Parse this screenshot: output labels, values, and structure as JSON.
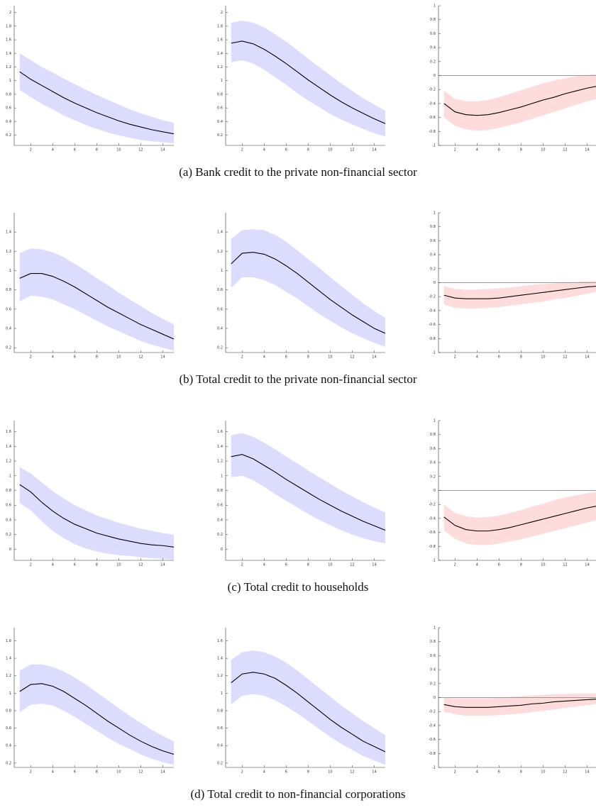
{
  "chart_data": [
    {
      "type": "line",
      "x": [
        1,
        2,
        3,
        4,
        5,
        6,
        7,
        8,
        9,
        10,
        11,
        12,
        13,
        14,
        15
      ],
      "values": [
        1.13,
        1.02,
        0.93,
        0.84,
        0.75,
        0.67,
        0.6,
        0.53,
        0.47,
        0.41,
        0.36,
        0.32,
        0.28,
        0.25,
        0.22
      ],
      "upper": [
        1.4,
        1.3,
        1.2,
        1.12,
        1.03,
        0.95,
        0.87,
        0.79,
        0.72,
        0.65,
        0.58,
        0.52,
        0.47,
        0.42,
        0.38
      ],
      "lower": [
        0.86,
        0.76,
        0.66,
        0.58,
        0.49,
        0.42,
        0.35,
        0.29,
        0.24,
        0.2,
        0.16,
        0.13,
        0.11,
        0.1,
        0.08
      ],
      "color": "#000000",
      "band_color": "#dcdcff",
      "xlim": [
        0.5,
        15
      ],
      "ylim": [
        0.05,
        2.1
      ],
      "xticks": [
        2,
        4,
        6,
        8,
        10,
        12,
        14
      ],
      "yticks": [
        0.2,
        0.4,
        0.6,
        0.8,
        1,
        1.2,
        1.4,
        1.6,
        1.8,
        2
      ],
      "zero_line": false
    },
    {
      "type": "line",
      "x": [
        1,
        2,
        3,
        4,
        5,
        6,
        7,
        8,
        9,
        10,
        11,
        12,
        13,
        14,
        15
      ],
      "values": [
        1.55,
        1.58,
        1.54,
        1.46,
        1.36,
        1.25,
        1.13,
        1.01,
        0.9,
        0.79,
        0.69,
        0.6,
        0.52,
        0.44,
        0.37
      ],
      "upper": [
        1.85,
        1.88,
        1.85,
        1.78,
        1.68,
        1.57,
        1.45,
        1.32,
        1.2,
        1.08,
        0.96,
        0.85,
        0.74,
        0.65,
        0.56
      ],
      "lower": [
        1.27,
        1.3,
        1.25,
        1.16,
        1.05,
        0.94,
        0.82,
        0.71,
        0.61,
        0.51,
        0.43,
        0.36,
        0.29,
        0.23,
        0.18
      ],
      "color": "#000000",
      "band_color": "#dcdcff",
      "xlim": [
        0.5,
        15
      ],
      "ylim": [
        0.05,
        2.1
      ],
      "xticks": [
        2,
        4,
        6,
        8,
        10,
        12,
        14
      ],
      "yticks": [
        0.2,
        0.4,
        0.6,
        0.8,
        1,
        1.2,
        1.4,
        1.6,
        1.8,
        2
      ],
      "zero_line": false
    },
    {
      "type": "line",
      "x": [
        1,
        2,
        3,
        4,
        5,
        6,
        7,
        8,
        9,
        10,
        11,
        12,
        13,
        14,
        15
      ],
      "values": [
        -0.4,
        -0.52,
        -0.56,
        -0.57,
        -0.56,
        -0.53,
        -0.49,
        -0.45,
        -0.4,
        -0.35,
        -0.31,
        -0.26,
        -0.22,
        -0.18,
        -0.15
      ],
      "upper": [
        -0.22,
        -0.33,
        -0.37,
        -0.37,
        -0.35,
        -0.31,
        -0.26,
        -0.21,
        -0.16,
        -0.11,
        -0.07,
        -0.04,
        -0.01,
        0.01,
        0.02
      ],
      "lower": [
        -0.6,
        -0.72,
        -0.77,
        -0.79,
        -0.78,
        -0.75,
        -0.71,
        -0.67,
        -0.62,
        -0.57,
        -0.52,
        -0.47,
        -0.42,
        -0.37,
        -0.33
      ],
      "color": "#000000",
      "band_color": "#ffdcdc",
      "xlim": [
        0.5,
        15
      ],
      "ylim": [
        -1,
        1
      ],
      "xticks": [
        2,
        4,
        6,
        8,
        10,
        12,
        14
      ],
      "yticks": [
        -1,
        -0.8,
        -0.6,
        -0.4,
        -0.2,
        0,
        0.2,
        0.4,
        0.6,
        0.8,
        1
      ],
      "zero_line": true
    },
    {
      "type": "line",
      "x": [
        1,
        2,
        3,
        4,
        5,
        6,
        7,
        8,
        9,
        10,
        11,
        12,
        13,
        14,
        15
      ],
      "values": [
        0.92,
        0.97,
        0.97,
        0.94,
        0.89,
        0.83,
        0.76,
        0.69,
        0.62,
        0.56,
        0.5,
        0.44,
        0.39,
        0.34,
        0.29
      ],
      "upper": [
        1.18,
        1.23,
        1.22,
        1.19,
        1.14,
        1.07,
        1.0,
        0.92,
        0.85,
        0.77,
        0.7,
        0.63,
        0.56,
        0.5,
        0.44
      ],
      "lower": [
        0.68,
        0.74,
        0.73,
        0.7,
        0.65,
        0.6,
        0.54,
        0.48,
        0.42,
        0.37,
        0.32,
        0.27,
        0.23,
        0.2,
        0.17
      ],
      "color": "#000000",
      "band_color": "#dcdcff",
      "xlim": [
        0.5,
        15
      ],
      "ylim": [
        0.15,
        1.6
      ],
      "xticks": [
        2,
        4,
        6,
        8,
        10,
        12,
        14
      ],
      "yticks": [
        0.2,
        0.4,
        0.6,
        0.8,
        1,
        1.2,
        1.4
      ],
      "zero_line": false
    },
    {
      "type": "line",
      "x": [
        1,
        2,
        3,
        4,
        5,
        6,
        7,
        8,
        9,
        10,
        11,
        12,
        13,
        14,
        15
      ],
      "values": [
        1.07,
        1.18,
        1.19,
        1.17,
        1.12,
        1.05,
        0.97,
        0.88,
        0.79,
        0.7,
        0.62,
        0.54,
        0.47,
        0.4,
        0.35
      ],
      "upper": [
        1.33,
        1.42,
        1.43,
        1.42,
        1.37,
        1.3,
        1.21,
        1.12,
        1.03,
        0.93,
        0.84,
        0.75,
        0.66,
        0.58,
        0.51
      ],
      "lower": [
        0.82,
        0.93,
        0.93,
        0.9,
        0.85,
        0.78,
        0.71,
        0.63,
        0.55,
        0.48,
        0.41,
        0.35,
        0.3,
        0.25,
        0.21
      ],
      "color": "#000000",
      "band_color": "#dcdcff",
      "xlim": [
        0.5,
        15
      ],
      "ylim": [
        0.15,
        1.6
      ],
      "xticks": [
        2,
        4,
        6,
        8,
        10,
        12,
        14
      ],
      "yticks": [
        0.2,
        0.4,
        0.6,
        0.8,
        1,
        1.2,
        1.4
      ],
      "zero_line": false
    },
    {
      "type": "line",
      "x": [
        1,
        2,
        3,
        4,
        5,
        6,
        7,
        8,
        9,
        10,
        11,
        12,
        13,
        14,
        15
      ],
      "values": [
        -0.18,
        -0.22,
        -0.23,
        -0.23,
        -0.23,
        -0.22,
        -0.2,
        -0.18,
        -0.16,
        -0.14,
        -0.12,
        -0.1,
        -0.08,
        -0.06,
        -0.05
      ],
      "upper": [
        -0.05,
        -0.09,
        -0.1,
        -0.1,
        -0.09,
        -0.08,
        -0.07,
        -0.05,
        -0.03,
        -0.02,
        -0.01,
        0.0,
        0.01,
        0.02,
        0.02
      ],
      "lower": [
        -0.31,
        -0.36,
        -0.37,
        -0.37,
        -0.36,
        -0.35,
        -0.33,
        -0.31,
        -0.29,
        -0.27,
        -0.24,
        -0.22,
        -0.19,
        -0.16,
        -0.13
      ],
      "color": "#000000",
      "band_color": "#ffdcdc",
      "xlim": [
        0.5,
        15
      ],
      "ylim": [
        -1,
        1
      ],
      "xticks": [
        2,
        4,
        6,
        8,
        10,
        12,
        14
      ],
      "yticks": [
        -1,
        -0.8,
        -0.6,
        -0.4,
        -0.2,
        0,
        0.2,
        0.4,
        0.6,
        0.8,
        1
      ],
      "zero_line": true
    },
    {
      "type": "line",
      "x": [
        1,
        2,
        3,
        4,
        5,
        6,
        7,
        8,
        9,
        10,
        11,
        12,
        13,
        14,
        15
      ],
      "values": [
        0.88,
        0.78,
        0.64,
        0.52,
        0.42,
        0.34,
        0.28,
        0.22,
        0.18,
        0.14,
        0.11,
        0.08,
        0.06,
        0.05,
        0.03
      ],
      "upper": [
        1.12,
        1.03,
        0.91,
        0.79,
        0.69,
        0.6,
        0.53,
        0.46,
        0.41,
        0.36,
        0.32,
        0.28,
        0.25,
        0.22,
        0.2
      ],
      "lower": [
        0.63,
        0.53,
        0.38,
        0.25,
        0.15,
        0.07,
        0.01,
        -0.03,
        -0.06,
        -0.08,
        -0.09,
        -0.11,
        -0.12,
        -0.13,
        -0.14
      ],
      "color": "#000000",
      "band_color": "#dcdcff",
      "xlim": [
        0.5,
        15
      ],
      "ylim": [
        -0.15,
        1.75
      ],
      "xticks": [
        2,
        4,
        6,
        8,
        10,
        12,
        14
      ],
      "yticks": [
        0,
        0.2,
        0.4,
        0.6,
        0.8,
        1,
        1.2,
        1.4,
        1.6
      ],
      "zero_line": false
    },
    {
      "type": "line",
      "x": [
        1,
        2,
        3,
        4,
        5,
        6,
        7,
        8,
        9,
        10,
        11,
        12,
        13,
        14,
        15
      ],
      "values": [
        1.26,
        1.29,
        1.23,
        1.14,
        1.05,
        0.95,
        0.86,
        0.77,
        0.68,
        0.6,
        0.52,
        0.45,
        0.38,
        0.32,
        0.26
      ],
      "upper": [
        1.55,
        1.58,
        1.53,
        1.45,
        1.36,
        1.26,
        1.17,
        1.07,
        0.98,
        0.89,
        0.8,
        0.72,
        0.64,
        0.57,
        0.5
      ],
      "lower": [
        0.98,
        1.0,
        0.94,
        0.85,
        0.75,
        0.66,
        0.57,
        0.48,
        0.4,
        0.33,
        0.26,
        0.2,
        0.15,
        0.11,
        0.08
      ],
      "color": "#000000",
      "band_color": "#dcdcff",
      "xlim": [
        0.5,
        15
      ],
      "ylim": [
        -0.15,
        1.75
      ],
      "xticks": [
        2,
        4,
        6,
        8,
        10,
        12,
        14
      ],
      "yticks": [
        0,
        0.2,
        0.4,
        0.6,
        0.8,
        1,
        1.2,
        1.4,
        1.6
      ],
      "zero_line": false
    },
    {
      "type": "line",
      "x": [
        1,
        2,
        3,
        4,
        5,
        6,
        7,
        8,
        9,
        10,
        11,
        12,
        13,
        14,
        15
      ],
      "values": [
        -0.38,
        -0.5,
        -0.56,
        -0.58,
        -0.58,
        -0.56,
        -0.53,
        -0.49,
        -0.45,
        -0.41,
        -0.37,
        -0.33,
        -0.29,
        -0.25,
        -0.22
      ],
      "upper": [
        -0.2,
        -0.32,
        -0.37,
        -0.39,
        -0.38,
        -0.36,
        -0.32,
        -0.28,
        -0.23,
        -0.19,
        -0.14,
        -0.1,
        -0.07,
        -0.04,
        -0.02
      ],
      "lower": [
        -0.57,
        -0.69,
        -0.76,
        -0.78,
        -0.78,
        -0.76,
        -0.73,
        -0.7,
        -0.66,
        -0.62,
        -0.58,
        -0.54,
        -0.5,
        -0.46,
        -0.42
      ],
      "color": "#000000",
      "band_color": "#ffdcdc",
      "xlim": [
        0.5,
        15
      ],
      "ylim": [
        -1,
        1
      ],
      "xticks": [
        2,
        4,
        6,
        8,
        10,
        12,
        14
      ],
      "yticks": [
        -1,
        -0.8,
        -0.6,
        -0.4,
        -0.2,
        0,
        0.2,
        0.4,
        0.6,
        0.8,
        1
      ],
      "zero_line": true
    },
    {
      "type": "line",
      "x": [
        1,
        2,
        3,
        4,
        5,
        6,
        7,
        8,
        9,
        10,
        11,
        12,
        13,
        14,
        15
      ],
      "values": [
        1.02,
        1.1,
        1.11,
        1.08,
        1.02,
        0.94,
        0.86,
        0.77,
        0.68,
        0.6,
        0.52,
        0.45,
        0.39,
        0.34,
        0.3
      ],
      "upper": [
        1.26,
        1.33,
        1.33,
        1.3,
        1.25,
        1.18,
        1.1,
        1.01,
        0.92,
        0.83,
        0.74,
        0.66,
        0.58,
        0.51,
        0.45
      ],
      "lower": [
        0.78,
        0.87,
        0.88,
        0.86,
        0.8,
        0.73,
        0.65,
        0.57,
        0.49,
        0.42,
        0.36,
        0.3,
        0.25,
        0.21,
        0.18
      ],
      "color": "#000000",
      "band_color": "#dcdcff",
      "xlim": [
        0.5,
        15
      ],
      "ylim": [
        0.15,
        1.75
      ],
      "xticks": [
        2,
        4,
        6,
        8,
        10,
        12,
        14
      ],
      "yticks": [
        0.2,
        0.4,
        0.6,
        0.8,
        1,
        1.2,
        1.4,
        1.6
      ],
      "zero_line": false
    },
    {
      "type": "line",
      "x": [
        1,
        2,
        3,
        4,
        5,
        6,
        7,
        8,
        9,
        10,
        11,
        12,
        13,
        14,
        15
      ],
      "values": [
        1.12,
        1.22,
        1.24,
        1.22,
        1.17,
        1.09,
        1.0,
        0.9,
        0.8,
        0.7,
        0.61,
        0.53,
        0.45,
        0.39,
        0.33
      ],
      "upper": [
        1.38,
        1.47,
        1.49,
        1.47,
        1.42,
        1.35,
        1.26,
        1.16,
        1.06,
        0.96,
        0.86,
        0.77,
        0.68,
        0.6,
        0.52
      ],
      "lower": [
        0.87,
        0.97,
        0.99,
        0.97,
        0.92,
        0.85,
        0.77,
        0.68,
        0.59,
        0.5,
        0.42,
        0.35,
        0.28,
        0.23,
        0.18
      ],
      "color": "#000000",
      "band_color": "#dcdcff",
      "xlim": [
        0.5,
        15
      ],
      "ylim": [
        0.15,
        1.75
      ],
      "xticks": [
        2,
        4,
        6,
        8,
        10,
        12,
        14
      ],
      "yticks": [
        0.2,
        0.4,
        0.6,
        0.8,
        1,
        1.2,
        1.4,
        1.6
      ],
      "zero_line": false
    },
    {
      "type": "line",
      "x": [
        1,
        2,
        3,
        4,
        5,
        6,
        7,
        8,
        9,
        10,
        11,
        12,
        13,
        14,
        15
      ],
      "values": [
        -0.1,
        -0.13,
        -0.14,
        -0.14,
        -0.14,
        -0.13,
        -0.12,
        -0.11,
        -0.09,
        -0.08,
        -0.06,
        -0.05,
        -0.04,
        -0.03,
        -0.02
      ],
      "upper": [
        0.0,
        -0.01,
        -0.01,
        -0.01,
        -0.01,
        0.0,
        0.01,
        0.02,
        0.03,
        0.04,
        0.05,
        0.05,
        0.06,
        0.06,
        0.06
      ],
      "lower": [
        -0.2,
        -0.24,
        -0.26,
        -0.26,
        -0.26,
        -0.25,
        -0.24,
        -0.23,
        -0.21,
        -0.19,
        -0.17,
        -0.15,
        -0.13,
        -0.11,
        -0.09
      ],
      "color": "#000000",
      "band_color": "#ffdcdc",
      "xlim": [
        0.5,
        15
      ],
      "ylim": [
        -1,
        1
      ],
      "xticks": [
        2,
        4,
        6,
        8,
        10,
        12,
        14
      ],
      "yticks": [
        -1,
        -0.8,
        -0.6,
        -0.4,
        -0.2,
        0,
        0.2,
        0.4,
        0.6,
        0.8,
        1
      ],
      "zero_line": true
    }
  ],
  "captions": [
    "(a) Bank credit to the private non-financial sector",
    "(b) Total credit to the private non-financial sector",
    "(c) Total credit to households",
    "(d) Total credit to non-financial corporations"
  ]
}
